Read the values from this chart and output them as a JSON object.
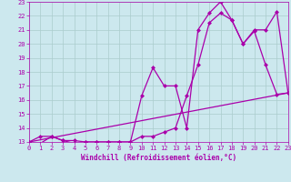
{
  "xlabel": "Windchill (Refroidissement éolien,°C)",
  "xlim": [
    0,
    23
  ],
  "ylim": [
    13,
    23
  ],
  "yticks": [
    13,
    14,
    15,
    16,
    17,
    18,
    19,
    20,
    21,
    22,
    23
  ],
  "xticks": [
    0,
    1,
    2,
    3,
    4,
    5,
    6,
    7,
    8,
    9,
    10,
    11,
    12,
    13,
    14,
    15,
    16,
    17,
    18,
    19,
    20,
    21,
    22,
    23
  ],
  "bg_color": "#cce8ee",
  "grid_color": "#aacccc",
  "line_color": "#aa00aa",
  "series": [
    {
      "x": [
        0,
        1,
        2,
        3,
        4,
        5,
        6,
        7,
        8,
        9,
        10,
        11,
        12,
        13,
        14,
        15,
        16,
        17,
        18,
        19,
        20,
        21,
        22,
        23
      ],
      "y": [
        13,
        12.9,
        13.4,
        13.1,
        12.9,
        13.0,
        13.0,
        13.0,
        13.0,
        13.0,
        16.3,
        18.3,
        17.0,
        17.0,
        14.0,
        21.0,
        22.2,
        23.0,
        21.7,
        20.0,
        20.9,
        18.5,
        16.4,
        16.5
      ],
      "marker": true
    },
    {
      "x": [
        0,
        1,
        2,
        3,
        4,
        5,
        6,
        7,
        8,
        9,
        10,
        11,
        12,
        13,
        14,
        15,
        16,
        17,
        18,
        19,
        20,
        21,
        22,
        23
      ],
      "y": [
        13,
        13.4,
        13.4,
        13.1,
        13.1,
        13.0,
        13.0,
        13.0,
        13.0,
        13.0,
        13.4,
        13.4,
        13.7,
        14.0,
        16.3,
        18.5,
        21.5,
        22.2,
        21.7,
        20.0,
        21.0,
        21.0,
        22.3,
        16.5
      ],
      "marker": true
    },
    {
      "x": [
        0,
        23
      ],
      "y": [
        13,
        16.5
      ],
      "marker": false
    }
  ],
  "markersize": 2.5,
  "linewidth": 0.9,
  "tick_fontsize": 5,
  "xlabel_fontsize": 5.5
}
